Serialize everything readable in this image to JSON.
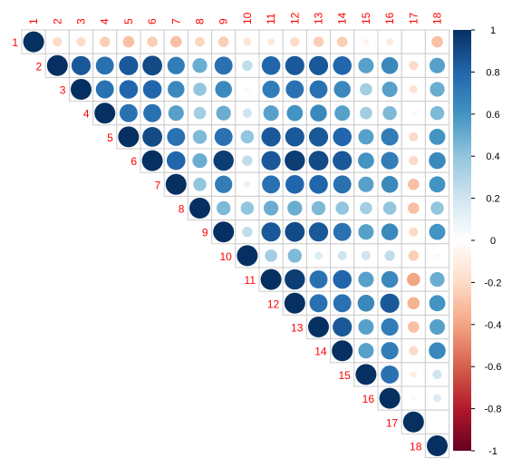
{
  "chart_data": {
    "type": "heatmap",
    "subtype": "correlation-matrix-upper-triangle-circles",
    "variables": [
      "1",
      "2",
      "3",
      "4",
      "5",
      "6",
      "7",
      "8",
      "9",
      "10",
      "11",
      "12",
      "13",
      "14",
      "15",
      "16",
      "17",
      "18"
    ],
    "matrix": [
      [
        1.0,
        -0.2,
        -0.2,
        -0.25,
        -0.3,
        -0.25,
        -0.3,
        -0.22,
        -0.25,
        -0.15,
        -0.12,
        -0.2,
        -0.25,
        -0.25,
        -0.08,
        -0.12,
        -0.02,
        -0.3
      ],
      [
        -0.2,
        1.0,
        0.85,
        0.75,
        0.85,
        0.9,
        0.7,
        0.5,
        0.75,
        0.25,
        0.8,
        0.85,
        0.85,
        0.8,
        0.55,
        0.65,
        -0.2,
        0.55
      ],
      [
        -0.2,
        0.85,
        1.0,
        0.75,
        0.8,
        0.8,
        0.65,
        0.4,
        0.65,
        0.05,
        0.7,
        0.75,
        0.75,
        0.65,
        0.35,
        0.55,
        -0.15,
        0.5
      ],
      [
        -0.25,
        0.75,
        0.75,
        1.0,
        0.75,
        0.75,
        0.55,
        0.35,
        0.5,
        0.2,
        0.55,
        0.6,
        0.65,
        0.55,
        0.35,
        0.45,
        -0.05,
        0.45
      ],
      [
        -0.3,
        0.85,
        0.8,
        0.75,
        1.0,
        0.9,
        0.75,
        0.45,
        0.75,
        0.4,
        0.85,
        0.85,
        0.85,
        0.8,
        0.55,
        0.7,
        -0.2,
        0.6
      ],
      [
        -0.25,
        0.9,
        0.8,
        0.75,
        0.9,
        1.0,
        0.8,
        0.5,
        0.95,
        0.25,
        0.85,
        0.95,
        0.9,
        0.85,
        0.6,
        0.7,
        -0.2,
        0.65
      ],
      [
        -0.3,
        0.7,
        0.65,
        0.55,
        0.75,
        0.8,
        1.0,
        0.4,
        0.7,
        0.1,
        0.75,
        0.8,
        0.8,
        0.75,
        0.55,
        0.65,
        -0.3,
        0.6
      ],
      [
        -0.22,
        0.5,
        0.4,
        0.35,
        0.45,
        0.5,
        0.4,
        1.0,
        0.45,
        0.4,
        0.5,
        0.5,
        0.45,
        0.4,
        0.35,
        0.4,
        -0.3,
        0.4
      ],
      [
        -0.25,
        0.75,
        0.65,
        0.5,
        0.75,
        0.95,
        0.7,
        0.45,
        1.0,
        0.25,
        0.85,
        0.9,
        0.85,
        0.75,
        0.55,
        0.65,
        -0.2,
        0.6
      ],
      [
        -0.15,
        0.25,
        0.05,
        0.2,
        0.4,
        0.25,
        0.1,
        0.4,
        0.25,
        1.0,
        0.35,
        0.45,
        0.15,
        0.2,
        0.2,
        0.25,
        -0.25,
        0.05
      ],
      [
        -0.12,
        0.8,
        0.7,
        0.55,
        0.85,
        0.85,
        0.75,
        0.5,
        0.85,
        0.35,
        1.0,
        0.95,
        0.75,
        0.8,
        0.55,
        0.65,
        -0.4,
        0.5
      ],
      [
        -0.2,
        0.85,
        0.75,
        0.6,
        0.85,
        0.95,
        0.8,
        0.5,
        0.9,
        0.45,
        0.95,
        1.0,
        0.75,
        0.75,
        0.65,
        0.85,
        -0.35,
        0.6
      ],
      [
        -0.25,
        0.85,
        0.75,
        0.65,
        0.85,
        0.9,
        0.8,
        0.45,
        0.85,
        0.15,
        0.75,
        0.75,
        1.0,
        0.85,
        0.55,
        0.7,
        -0.3,
        0.55
      ],
      [
        -0.25,
        0.8,
        0.65,
        0.55,
        0.8,
        0.85,
        0.75,
        0.4,
        0.75,
        0.2,
        0.8,
        0.75,
        0.85,
        1.0,
        0.55,
        0.7,
        -0.2,
        0.65
      ],
      [
        -0.08,
        0.55,
        0.35,
        0.35,
        0.55,
        0.6,
        0.55,
        0.35,
        0.55,
        0.2,
        0.55,
        0.65,
        0.55,
        0.55,
        1.0,
        0.75,
        -0.1,
        0.2
      ],
      [
        -0.12,
        0.65,
        0.55,
        0.45,
        0.7,
        0.7,
        0.65,
        0.4,
        0.65,
        0.25,
        0.65,
        0.85,
        0.7,
        0.7,
        0.75,
        1.0,
        -0.05,
        0.15
      ],
      [
        -0.02,
        -0.2,
        -0.15,
        -0.05,
        -0.2,
        -0.2,
        -0.3,
        -0.3,
        -0.2,
        -0.25,
        -0.4,
        -0.35,
        -0.3,
        -0.2,
        -0.1,
        -0.05,
        1.0,
        0.0
      ],
      [
        -0.3,
        0.55,
        0.5,
        0.45,
        0.6,
        0.65,
        0.6,
        0.4,
        0.6,
        0.05,
        0.5,
        0.6,
        0.55,
        0.65,
        0.2,
        0.15,
        0.0,
        1.0
      ]
    ],
    "colorbar": {
      "range": [
        -1,
        1
      ],
      "ticks": [
        "1",
        "0.8",
        "0.6",
        "0.4",
        "0.2",
        "0",
        "-0.2",
        "-0.4",
        "-0.6",
        "-0.8",
        "-1"
      ],
      "tick_values": [
        1,
        0.8,
        0.6,
        0.4,
        0.2,
        0,
        -0.2,
        -0.4,
        -0.6,
        -0.8,
        -1
      ]
    },
    "label_color": "#ff0000",
    "grid_color": "#cccccc",
    "color_stops": [
      "#67001f",
      "#b2182b",
      "#d6604d",
      "#f4a582",
      "#fddbc7",
      "#ffffff",
      "#d1e5f0",
      "#92c5de",
      "#4393c3",
      "#2166ac",
      "#053061"
    ]
  }
}
